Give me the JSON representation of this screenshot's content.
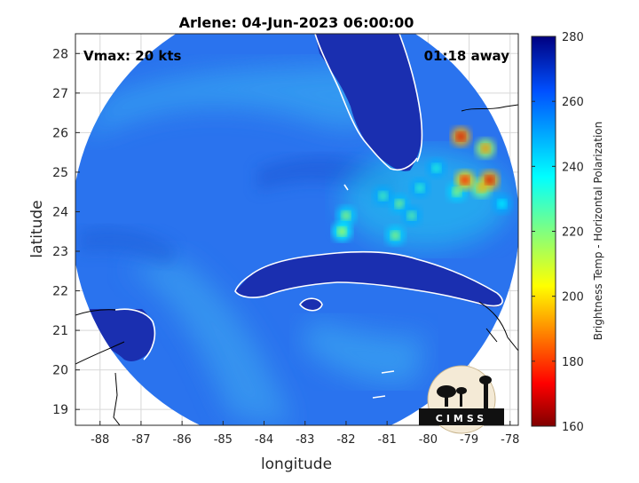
{
  "chart_data": {
    "type": "heatmap",
    "title": "Arlene: 04-Jun-2023 06:00:00",
    "xlabel": "longitude",
    "ylabel": "latitude",
    "xlim": [
      -88.6,
      -77.8
    ],
    "ylim": [
      18.6,
      28.5
    ],
    "xticks": [
      -88,
      -87,
      -86,
      -85,
      -84,
      -83,
      -82,
      -81,
      -80,
      -79,
      -78
    ],
    "yticks": [
      19,
      20,
      21,
      22,
      23,
      24,
      25,
      26,
      27,
      28
    ],
    "grid": true,
    "annotations": {
      "vmax": "Vmax: 20 kts",
      "time_away": "01:18 away"
    },
    "colorbar": {
      "label": "Brightness Temp - Horizontal Polarization",
      "range": [
        160,
        280
      ],
      "ticks": [
        160,
        180,
        200,
        220,
        240,
        260,
        280
      ],
      "colormap": "jet"
    },
    "swath_center": {
      "lon": -83.2,
      "lat": 23.6
    },
    "warm_spots": [
      {
        "lon": -79.3,
        "lat": 24.5,
        "value": 215
      },
      {
        "lon": -78.7,
        "lat": 24.6,
        "value": 195
      },
      {
        "lon": -78.5,
        "lat": 24.8,
        "value": 170
      },
      {
        "lon": -79.1,
        "lat": 24.8,
        "value": 175
      },
      {
        "lon": -79.2,
        "lat": 25.9,
        "value": 170
      },
      {
        "lon": -78.6,
        "lat": 25.6,
        "value": 190
      },
      {
        "lon": -80.7,
        "lat": 24.2,
        "value": 218
      },
      {
        "lon": -80.4,
        "lat": 23.9,
        "value": 222
      },
      {
        "lon": -81.1,
        "lat": 24.4,
        "value": 225
      },
      {
        "lon": -82.0,
        "lat": 23.9,
        "value": 215
      },
      {
        "lon": -82.1,
        "lat": 23.5,
        "value": 210
      },
      {
        "lon": -80.8,
        "lat": 23.4,
        "value": 215
      },
      {
        "lon": -80.2,
        "lat": 24.6,
        "value": 228
      },
      {
        "lon": -79.8,
        "lat": 25.1,
        "value": 230
      },
      {
        "lon": -78.2,
        "lat": 24.2,
        "value": 235
      }
    ]
  },
  "logo": {
    "text": "CIMSS"
  }
}
